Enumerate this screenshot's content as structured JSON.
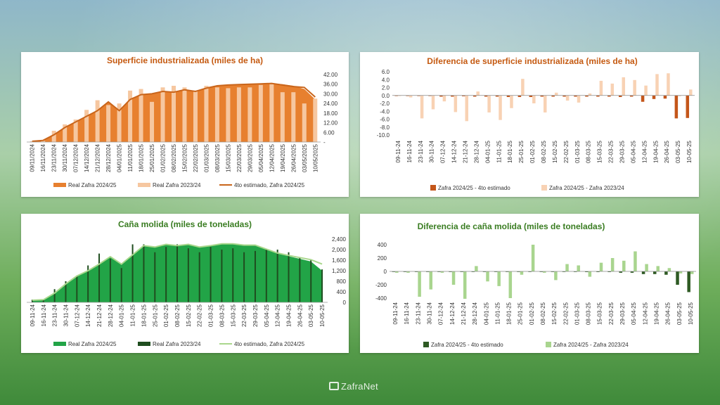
{
  "brand": "ZafraNet",
  "colors": {
    "orange_dark": "#e7802f",
    "orange_light": "#f6c7a0",
    "orange_line": "#c9651b",
    "orange_diff_dark": "#c4561a",
    "orange_diff_light": "#f8d2b4",
    "green_area": "#22a447",
    "green_dark": "#1f4d1f",
    "green_line": "#a9d78c",
    "green_diff_light": "#a9d58f",
    "green_diff_dark": "#2e5a23",
    "title_orange": "#c55a11",
    "title_green": "#3a7d22"
  },
  "chart_data": [
    {
      "type": "bar",
      "title": "Superficie industrializada (miles de ha)",
      "x": [
        "09/11/2024",
        "16/11/2024",
        "23/11/2024",
        "30/11/2024",
        "07/12/2024",
        "14/12/2024",
        "21/12/2024",
        "28/12/2024",
        "04/01/2025",
        "11/01/2025",
        "18/01/2025",
        "25/01/2025",
        "01/02/2025",
        "08/02/2025",
        "15/02/2025",
        "22/02/2025",
        "01/03/2025",
        "08/03/2025",
        "15/03/2025",
        "22/03/2025",
        "29/03/2025",
        "05/04/2025",
        "12/04/2025",
        "19/04/2025",
        "26/04/2025",
        "03/05/2025",
        "10/05/2025"
      ],
      "y_ticks": [
        "-",
        "6.00",
        "12.00",
        "18.00",
        "24.00",
        "30.00",
        "36.00",
        "42.00"
      ],
      "ylim": [
        0,
        42
      ],
      "series": [
        {
          "name": "Real Zafra 2024/25",
          "type": "area",
          "values": [
            0.5,
            1.0,
            4.5,
            9.0,
            12.5,
            16.0,
            19.5,
            25.0,
            19.5,
            26.5,
            29.5,
            30.0,
            31.5,
            31.0,
            32.5,
            31.5,
            33.5,
            35.0,
            35.5,
            35.8,
            36.0,
            36.2,
            36.5,
            36.0,
            35.0,
            33.0,
            26.5
          ]
        },
        {
          "name": "Real Zafra 2023/24",
          "type": "bar",
          "values": [
            0.5,
            0.8,
            7.0,
            11.0,
            14.0,
            20.0,
            26.0,
            23.0,
            24.0,
            32.0,
            33.0,
            25.0,
            34.0,
            35.0,
            34.0,
            32.0,
            35.0,
            34.0,
            33.5,
            34.0,
            34.0,
            35.5,
            36.0,
            31.0,
            31.0,
            24.0,
            27.0
          ]
        },
        {
          "name": "4to estimado, Zafra 2024/25",
          "type": "line",
          "values": [
            0.5,
            1.0,
            4.5,
            9.0,
            12.5,
            16.0,
            19.5,
            25.0,
            19.5,
            26.5,
            29.5,
            30.0,
            31.5,
            31.0,
            32.5,
            31.5,
            33.5,
            35.0,
            35.5,
            35.8,
            36.0,
            36.2,
            36.5,
            35.5,
            34.5,
            34.0,
            28.0
          ]
        }
      ]
    },
    {
      "type": "bar",
      "title": "Diferencia de superficie industrializada (miles de ha)",
      "x": [
        "09-11-24",
        "16-11-24",
        "23-11-24",
        "30-11-24",
        "07-12-24",
        "14-12-24",
        "21-12-24",
        "28-12-24",
        "04-01-25",
        "11-01-25",
        "18-01-25",
        "25-01-25",
        "01-02-25",
        "08-02-25",
        "15-02-25",
        "22-02-25",
        "01-03-25",
        "08-03-25",
        "15-03-25",
        "22-03-25",
        "29-03-25",
        "05-04-25",
        "12-04-25",
        "19-04-25",
        "26-04-25",
        "03-05-25",
        "10-05-25"
      ],
      "y_ticks": [
        "-10.0",
        "-8.0",
        "-6.0",
        "-4.0",
        "-2.0",
        "0.0",
        "2.0",
        "4.0",
        "6.0"
      ],
      "ylim": [
        -10,
        6
      ],
      "series": [
        {
          "name": "Zafra 2024/25 - 4to estimado",
          "values": [
            0,
            0,
            0,
            0,
            -0.3,
            -0.3,
            -0.2,
            -0.3,
            -0.3,
            -0.3,
            -0.4,
            -0.4,
            -0.4,
            -0.3,
            -0.3,
            -0.3,
            -0.3,
            -0.3,
            -0.3,
            -0.3,
            -0.4,
            -0.3,
            -1.6,
            -0.9,
            -0.8,
            -5.8,
            -5.7
          ]
        },
        {
          "name": "Zafra 2024/25 - Zafra 2023/24",
          "values": [
            0,
            -0.5,
            -5.8,
            -3.5,
            -1.5,
            -4.2,
            -6.5,
            1.0,
            -4.3,
            -6.2,
            -3.2,
            4.2,
            -2.0,
            -4.3,
            0.7,
            -1.3,
            -1.8,
            0.5,
            3.7,
            3.0,
            4.6,
            3.9,
            2.5,
            5.4,
            5.6,
            -0.2,
            1.5
          ]
        }
      ]
    },
    {
      "type": "bar",
      "title": "Caña molida (miles de toneladas)",
      "x": [
        "09-11-24",
        "16-11-24",
        "23-11-24",
        "30-11-24",
        "07-12-24",
        "14-12-24",
        "21-12-24",
        "28-12-24",
        "04-01-25",
        "11-01-25",
        "18-01-25",
        "25-01-25",
        "01-02-25",
        "08-02-25",
        "15-02-25",
        "22-02-25",
        "01-03-25",
        "08-03-25",
        "15-03-25",
        "22-03-25",
        "29-03-25",
        "05-04-25",
        "12-04-25",
        "19-04-25",
        "26-04-25",
        "03-05-25",
        "10-05-25"
      ],
      "y_ticks": [
        "0",
        "400",
        "800",
        "1,200",
        "1,600",
        "2,000",
        "2,400"
      ],
      "ylim": [
        0,
        2400
      ],
      "series": [
        {
          "name": "Real Zafra 2024/25",
          "type": "area",
          "values": [
            80,
            100,
            350,
            700,
            1000,
            1200,
            1450,
            1730,
            1450,
            1800,
            2150,
            2100,
            2200,
            2150,
            2200,
            2100,
            2150,
            2200,
            2200,
            2150,
            2150,
            2000,
            1850,
            1750,
            1650,
            1550,
            1200
          ]
        },
        {
          "name": "Real Zafra 2023/24",
          "type": "bar",
          "values": [
            100,
            120,
            500,
            800,
            1000,
            1400,
            1850,
            1650,
            1300,
            2200,
            2200,
            1900,
            2100,
            2200,
            2050,
            1900,
            2100,
            2000,
            2050,
            1900,
            1950,
            2000,
            2000,
            1900,
            1700,
            1600,
            1250
          ]
        },
        {
          "name": "4to estimado, Zafra 2024/25",
          "type": "line",
          "values": [
            80,
            100,
            350,
            700,
            1000,
            1200,
            1450,
            1730,
            1450,
            1800,
            2150,
            2100,
            2200,
            2150,
            2200,
            2100,
            2150,
            2220,
            2220,
            2170,
            2170,
            2020,
            1870,
            1780,
            1700,
            1620,
            1450
          ]
        }
      ]
    },
    {
      "type": "bar",
      "title": "Diferencia de caña molida (miles de toneladas)",
      "x": [
        "09-11-24",
        "16-11-24",
        "23-11-24",
        "30-11-24",
        "07-12-24",
        "14-12-24",
        "21-12-24",
        "28-12-24",
        "04-01-25",
        "11-01-25",
        "18-01-25",
        "25-01-25",
        "01-02-25",
        "08-02-25",
        "15-02-25",
        "22-02-25",
        "01-03-25",
        "08-03-25",
        "15-03-25",
        "22-03-25",
        "29-03-25",
        "05-04-25",
        "12-04-25",
        "19-04-25",
        "26-04-25",
        "03-05-25",
        "10-05-25"
      ],
      "y_ticks": [
        "-400",
        "-200",
        "0",
        "200",
        "400"
      ],
      "ylim": [
        -400,
        400
      ],
      "series": [
        {
          "name": "Zafra 2024/25 - 4to estimado",
          "values": [
            0,
            0,
            0,
            0,
            0,
            0,
            0,
            0,
            0,
            0,
            0,
            0,
            0,
            0,
            0,
            0,
            0,
            -10,
            -10,
            -10,
            -20,
            -20,
            -40,
            -40,
            -50,
            -200,
            -310
          ]
        },
        {
          "name": "Zafra 2024/25 - Zafra 2023/24",
          "values": [
            -20,
            -20,
            -380,
            -270,
            -20,
            -200,
            -410,
            80,
            -150,
            -220,
            -400,
            -50,
            400,
            -20,
            -130,
            110,
            90,
            -80,
            130,
            200,
            160,
            300,
            110,
            80,
            50,
            -30,
            -40
          ]
        }
      ]
    }
  ]
}
